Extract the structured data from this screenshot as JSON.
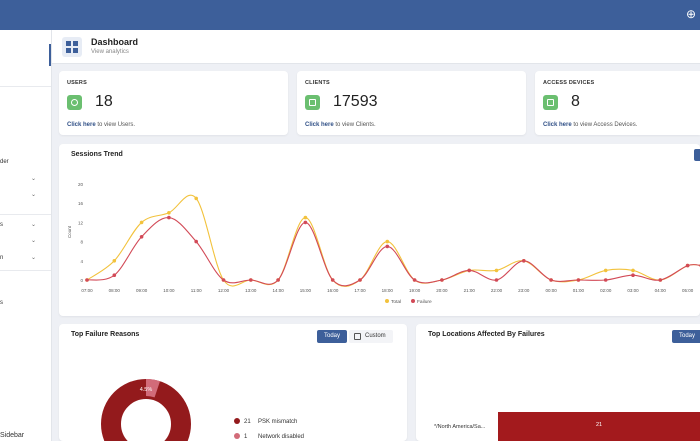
{
  "topbar": {
    "globe_icon": "globe-icon"
  },
  "sidebar": {
    "items": [
      {
        "label": "der"
      },
      {
        "label": "s"
      },
      {
        "label": "n"
      },
      {
        "label": "s"
      }
    ],
    "bottom_label": "Sidebar"
  },
  "header": {
    "title": "Dashboard",
    "subtitle": "View analytics",
    "icon": "dashboard-icon"
  },
  "stats": [
    {
      "title": "USERS",
      "value": "18",
      "link_bold": "Click here",
      "link_rest": " to view Users.",
      "icon": "user-icon"
    },
    {
      "title": "CLIENTS",
      "value": "17593",
      "link_bold": "Click here",
      "link_rest": " to view Clients.",
      "icon": "monitor-icon"
    },
    {
      "title": "ACCESS DEVICES",
      "value": "8",
      "link_bold": "Click here",
      "link_rest": " to view Access Devices.",
      "icon": "device-icon"
    }
  ],
  "trend": {
    "title": "Sessions Trend",
    "legend": [
      "Total",
      "Failure"
    ]
  },
  "chart_data": {
    "type": "line",
    "title": "Sessions Trend",
    "ylabel": "Count",
    "xlabel": "",
    "ylim": [
      0,
      20
    ],
    "yticks": [
      0,
      4,
      8,
      12,
      16,
      20
    ],
    "x": [
      "07:00",
      "08:00",
      "09:00",
      "10:00",
      "11:00",
      "12:00",
      "13:00",
      "14:00",
      "15:00",
      "16:00",
      "17:00",
      "18:00",
      "19:00",
      "20:00",
      "21:00",
      "22:00",
      "23:00",
      "00:00",
      "01:00",
      "02:00",
      "03:00",
      "04:00",
      "05:00"
    ],
    "series": [
      {
        "name": "Total",
        "color": "#f2c23c",
        "points": [
          [
            0,
            0
          ],
          [
            1,
            4
          ],
          [
            2,
            12
          ],
          [
            3,
            14
          ],
          [
            4,
            17
          ],
          [
            5,
            0
          ],
          [
            6,
            0
          ],
          [
            7,
            0
          ],
          [
            8,
            13
          ],
          [
            9,
            0
          ],
          [
            10,
            0
          ],
          [
            11,
            8
          ],
          [
            12,
            0
          ],
          [
            13,
            0
          ],
          [
            14,
            2
          ],
          [
            15,
            2
          ],
          [
            16,
            4
          ],
          [
            17,
            0
          ],
          [
            18,
            0
          ],
          [
            19,
            2
          ],
          [
            20,
            2
          ],
          [
            21,
            0
          ],
          [
            22,
            3
          ],
          [
            22.5,
            3
          ]
        ]
      },
      {
        "name": "Failure",
        "color": "#d24a57",
        "points": [
          [
            0,
            0
          ],
          [
            1,
            1
          ],
          [
            2,
            9
          ],
          [
            3,
            13
          ],
          [
            4,
            8
          ],
          [
            5,
            0
          ],
          [
            6,
            0
          ],
          [
            7,
            0
          ],
          [
            8,
            12
          ],
          [
            9,
            0
          ],
          [
            10,
            0
          ],
          [
            11,
            7
          ],
          [
            12,
            0
          ],
          [
            13,
            0
          ],
          [
            14,
            2
          ],
          [
            15,
            0
          ],
          [
            16,
            4
          ],
          [
            17,
            0
          ],
          [
            18,
            0
          ],
          [
            19,
            0
          ],
          [
            20,
            1
          ],
          [
            21,
            0
          ],
          [
            22,
            3
          ],
          [
            22.5,
            3
          ]
        ]
      }
    ],
    "grid": false,
    "legend_position": "bottom"
  },
  "failure_reasons": {
    "title": "Top Failure Reasons",
    "today_label": "Today",
    "custom_label": "Custom",
    "donut_label": "4.5%",
    "donut_color": "#931a1c",
    "items": [
      {
        "count": "21",
        "label": "PSK mismatch",
        "color": "#931a1c"
      },
      {
        "count": "1",
        "label": "Network disabled",
        "color": "#d26b79"
      }
    ]
  },
  "locations": {
    "title": "Top Locations Affected By Failures",
    "today_label": "Today",
    "bar_label": "*/North America/Sa...",
    "bar_value": "21",
    "bar_color": "#a31a1d"
  }
}
